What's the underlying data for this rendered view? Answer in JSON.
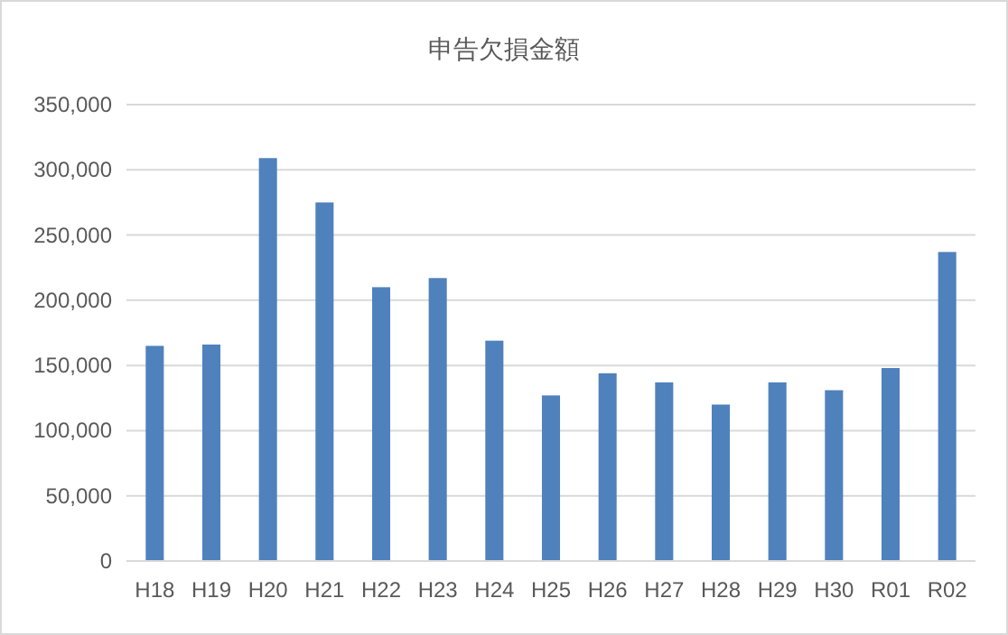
{
  "chart_data": {
    "type": "bar",
    "title": "申告欠損金額",
    "categories": [
      "H18",
      "H19",
      "H20",
      "H21",
      "H22",
      "H23",
      "H24",
      "H25",
      "H26",
      "H27",
      "H28",
      "H29",
      "H30",
      "R01",
      "R02"
    ],
    "values": [
      165000,
      166000,
      309000,
      275000,
      210000,
      217000,
      169000,
      127000,
      144000,
      137000,
      120000,
      137000,
      131000,
      148000,
      237000
    ],
    "color": "#4f81bd",
    "ylim": [
      0,
      350000
    ],
    "yticks": [
      {
        "value": 0,
        "label": "0"
      },
      {
        "value": 50000,
        "label": "50,000"
      },
      {
        "value": 100000,
        "label": "100,000"
      },
      {
        "value": 150000,
        "label": "150,000"
      },
      {
        "value": 200000,
        "label": "200,000"
      },
      {
        "value": 250000,
        "label": "250,000"
      },
      {
        "value": 300000,
        "label": "300,000"
      },
      {
        "value": 350000,
        "label": "350,000"
      }
    ],
    "grid": "y"
  }
}
